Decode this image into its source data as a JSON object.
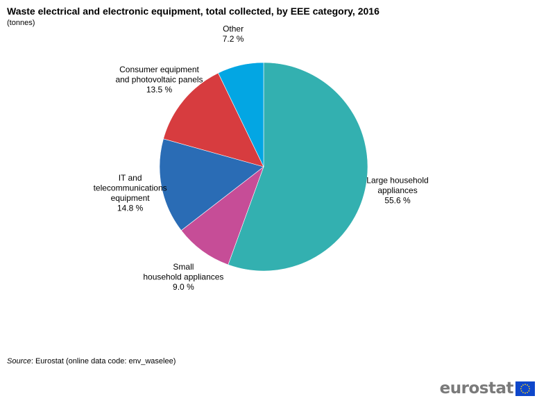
{
  "title": "Waste electrical and electronic equipment, total collected, by EEE category, 2016",
  "subtitle": "(tonnes)",
  "source": {
    "label": "Source",
    "text": ": Eurostat (online data code: env_waselee)"
  },
  "logo": {
    "text": "eurostat",
    "flag_color": "#0e47cb",
    "star_color": "#ffd617"
  },
  "chart_data": {
    "type": "pie",
    "start_angle_deg": 0,
    "direction": "clockwise",
    "slices": [
      {
        "label": [
          "Large household",
          "appliances"
        ],
        "value": 55.6,
        "value_text": "55.6 %",
        "color": "#33b0b0"
      },
      {
        "label": [
          "Small",
          "household appliances"
        ],
        "value": 9.0,
        "value_text": "9.0 %",
        "color": "#c64d97"
      },
      {
        "label": [
          "IT and",
          "telecommunications",
          "equipment"
        ],
        "value": 14.8,
        "value_text": "14.8 %",
        "color": "#2a6cb5"
      },
      {
        "label": [
          "Consumer equipment",
          "and photovoltaic  panels"
        ],
        "value": 13.5,
        "value_text": "13.5 %",
        "color": "#d73c3f"
      },
      {
        "label": [
          "Other"
        ],
        "value": 7.2,
        "value_text": "7.2 %",
        "color": "#03a6e3"
      }
    ]
  }
}
